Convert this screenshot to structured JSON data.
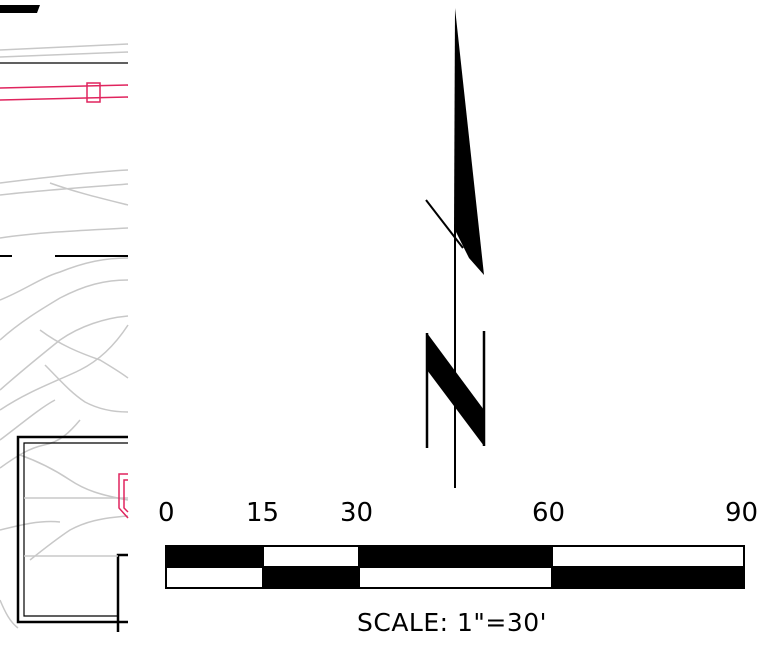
{
  "scale_bar": {
    "ticks": [
      {
        "label": "0",
        "value": 0
      },
      {
        "label": "15",
        "value": 15
      },
      {
        "label": "30",
        "value": 30
      },
      {
        "label": "60",
        "value": 60
      },
      {
        "label": "90",
        "value": 90
      }
    ],
    "caption": "SCALE: 1\"=30'"
  },
  "north_arrow": {
    "letter": "N"
  },
  "colors": {
    "ink": "#000000",
    "site_lines": "#c8c8c8",
    "property_line": "#e0245e"
  }
}
